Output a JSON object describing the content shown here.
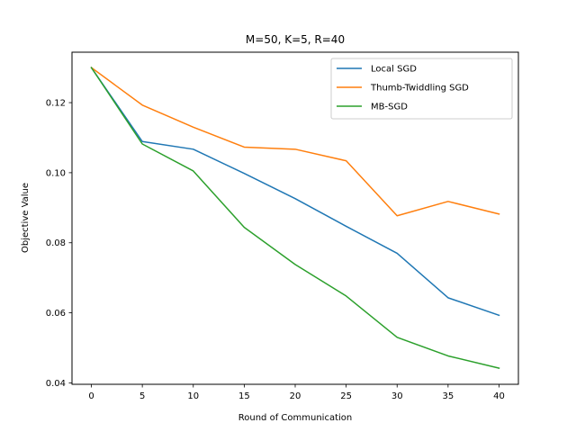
{
  "chart_data": {
    "type": "line",
    "title": "M=50, K=5, R=40",
    "xlabel": "Round of Communication",
    "ylabel": "Objective Value",
    "xlim": [
      -1.9,
      41.9
    ],
    "ylim": [
      0.0396,
      0.1344
    ],
    "xticks": [
      0,
      5,
      10,
      15,
      20,
      25,
      30,
      35,
      40
    ],
    "xtick_labels": [
      "0",
      "5",
      "10",
      "15",
      "20",
      "25",
      "30",
      "35",
      "40"
    ],
    "yticks": [
      0.04,
      0.06,
      0.08,
      0.1,
      0.12
    ],
    "ytick_labels": [
      "0.04",
      "0.06",
      "0.08",
      "0.10",
      "0.12"
    ],
    "grid": false,
    "legend_position": "top-right",
    "x": [
      0,
      5,
      10,
      15,
      20,
      25,
      30,
      35,
      40
    ],
    "series": [
      {
        "name": "Local SGD",
        "color": "#1f77b4",
        "values": [
          0.13,
          0.1089,
          0.1067,
          0.0998,
          0.0926,
          0.0847,
          0.077,
          0.0643,
          0.0593
        ]
      },
      {
        "name": "Thumb-Twiddling SGD",
        "color": "#ff7f0e",
        "values": [
          0.13,
          0.1193,
          0.113,
          0.1073,
          0.1067,
          0.1034,
          0.0877,
          0.0918,
          0.0882
        ]
      },
      {
        "name": "MB-SGD",
        "color": "#2ca02c",
        "values": [
          0.13,
          0.1082,
          0.1005,
          0.0844,
          0.0738,
          0.0648,
          0.053,
          0.0477,
          0.0442
        ]
      }
    ]
  }
}
